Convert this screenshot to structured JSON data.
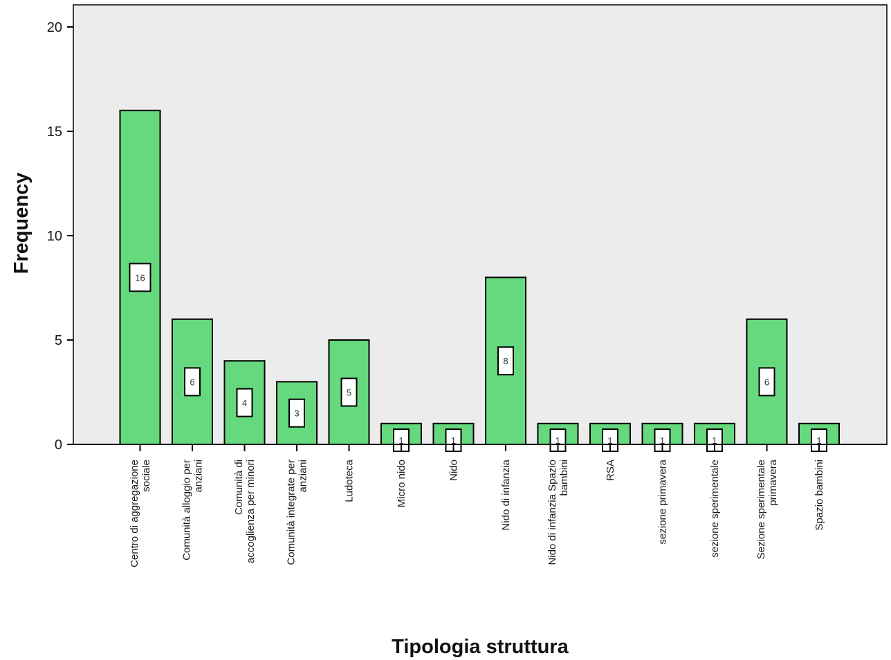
{
  "chart_data": {
    "type": "bar",
    "title": "",
    "xlabel": "Tipologia struttura",
    "ylabel": "Frequency",
    "ylim": [
      0,
      21
    ],
    "yticks": [
      0,
      5,
      10,
      15,
      20
    ],
    "grid": false,
    "bar_color": "#66d97e",
    "plot_background": "#ececec",
    "categories": [
      [
        "Centro di aggregazione",
        "sociale"
      ],
      [
        "Comunità alloggio per",
        "anziani"
      ],
      [
        "Comunità di",
        "accoglienza per minori"
      ],
      [
        "Comunità integrate per",
        "anziani"
      ],
      [
        "Ludoteca"
      ],
      [
        "Micro nido"
      ],
      [
        "Nido"
      ],
      [
        "Nido di infanzia"
      ],
      [
        "Nido di infanzia  Spazio",
        "bambini"
      ],
      [
        "RSA"
      ],
      [
        "sezione primavera"
      ],
      [
        "sezione sperimentale"
      ],
      [
        "Sezione sperimentale",
        "primavera"
      ],
      [
        "Spazio bambini"
      ]
    ],
    "values": [
      16,
      6,
      4,
      3,
      5,
      1,
      1,
      8,
      1,
      1,
      1,
      1,
      6,
      1
    ],
    "data_labels": [
      "16",
      "6",
      "4",
      "3",
      "5",
      "1",
      "1",
      "8",
      "1",
      "1",
      "1",
      "1",
      "6",
      "1"
    ]
  }
}
